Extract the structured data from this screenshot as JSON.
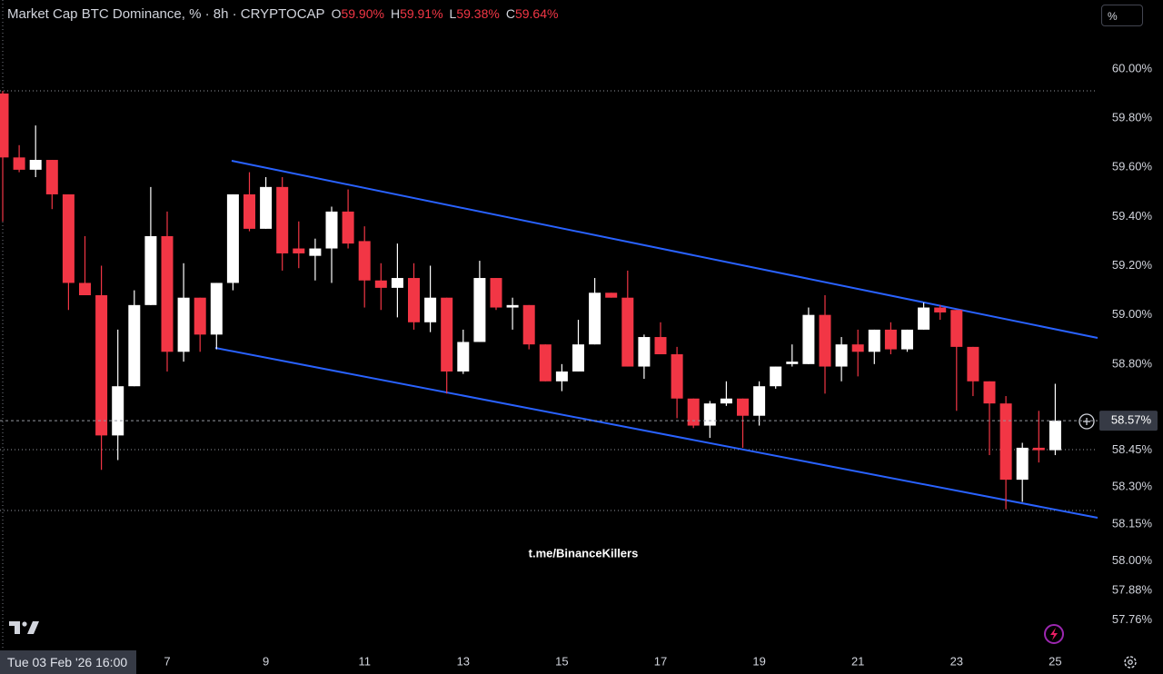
{
  "chart_data": {
    "type": "candlestick",
    "title": "Market Cap BTC Dominance, % · 8h · CRYPTOCAP",
    "ohlc_keys": [
      "O",
      "H",
      "L",
      "C"
    ],
    "ohlc_labels": [
      "59.90%",
      "59.91%",
      "59.38%",
      "59.64%"
    ],
    "crosshair_time": "Tue 03 Feb '26 16:00",
    "watermark": "t.me/BinanceKillers",
    "scale_button": "%",
    "last_price_label": "58.57%",
    "up_color": "#ffffff",
    "down_color": "#f23645",
    "categories": [
      null,
      null,
      null,
      null,
      null,
      null,
      null,
      null,
      null,
      null,
      "7",
      null,
      null,
      null,
      null,
      null,
      "9",
      null,
      null,
      null,
      null,
      null,
      "11",
      null,
      null,
      null,
      null,
      null,
      "13",
      null,
      null,
      null,
      null,
      null,
      "15",
      null,
      null,
      null,
      null,
      null,
      "17",
      null,
      null,
      null,
      null,
      null,
      "19",
      null,
      null,
      null,
      null,
      null,
      "21",
      null,
      null,
      null,
      null,
      null,
      "23",
      null,
      null,
      null,
      null,
      null,
      "25"
    ],
    "open": [
      59.9,
      59.64,
      59.59,
      59.63,
      59.49,
      59.13,
      59.08,
      58.51,
      58.71,
      59.04,
      59.32,
      58.85,
      59.07,
      58.92,
      59.13,
      59.49,
      59.35,
      59.52,
      59.27,
      59.24,
      59.27,
      59.42,
      59.3,
      59.14,
      59.11,
      59.15,
      58.97,
      59.07,
      58.77,
      58.89,
      59.15,
      59.03,
      59.04,
      58.88,
      58.73,
      58.77,
      58.88,
      59.09,
      59.07,
      58.79,
      58.91,
      58.84,
      58.66,
      58.55,
      58.64,
      58.66,
      58.59,
      58.71,
      58.8,
      58.8,
      59.0,
      58.79,
      58.88,
      58.85,
      58.94,
      58.86,
      58.94,
      59.03,
      59.02,
      58.87,
      58.73,
      58.64,
      58.33,
      58.46,
      58.45
    ],
    "high": [
      59.91,
      59.69,
      59.77,
      59.63,
      59.49,
      59.32,
      59.2,
      58.94,
      59.1,
      59.52,
      59.42,
      59.21,
      59.07,
      59.13,
      59.49,
      59.58,
      59.56,
      59.56,
      59.38,
      59.31,
      59.44,
      59.51,
      59.36,
      59.21,
      59.29,
      59.21,
      59.2,
      59.07,
      58.94,
      59.22,
      59.15,
      59.07,
      59.04,
      58.88,
      58.8,
      58.98,
      59.15,
      59.09,
      59.18,
      58.92,
      58.97,
      58.87,
      58.66,
      58.65,
      58.73,
      58.66,
      58.73,
      58.79,
      58.88,
      59.03,
      59.08,
      58.91,
      58.94,
      58.94,
      58.97,
      58.94,
      59.05,
      59.04,
      59.02,
      58.87,
      58.73,
      58.67,
      58.48,
      58.61,
      58.72
    ],
    "low": [
      59.38,
      59.58,
      59.56,
      59.43,
      59.02,
      59.08,
      58.37,
      58.41,
      58.71,
      59.04,
      58.77,
      58.81,
      58.85,
      58.86,
      59.1,
      59.34,
      59.35,
      59.18,
      59.19,
      59.14,
      59.13,
      59.27,
      59.03,
      59.02,
      58.99,
      58.94,
      58.93,
      58.68,
      58.76,
      58.89,
      59.02,
      58.94,
      58.86,
      58.73,
      58.69,
      58.77,
      58.88,
      59.07,
      58.79,
      58.74,
      58.84,
      58.58,
      58.54,
      58.5,
      58.63,
      58.46,
      58.55,
      58.7,
      58.79,
      58.8,
      58.68,
      58.73,
      58.75,
      58.8,
      58.84,
      58.85,
      58.94,
      58.98,
      58.61,
      58.67,
      58.43,
      58.21,
      58.24,
      58.4,
      58.43
    ],
    "close": [
      59.64,
      59.59,
      59.63,
      59.49,
      59.13,
      59.08,
      58.51,
      58.71,
      59.04,
      59.32,
      58.85,
      59.07,
      58.92,
      59.13,
      59.49,
      59.35,
      59.52,
      59.25,
      59.25,
      59.27,
      59.42,
      59.29,
      59.14,
      59.11,
      59.15,
      58.97,
      59.07,
      58.77,
      58.89,
      59.15,
      59.03,
      59.04,
      58.88,
      58.73,
      58.77,
      58.88,
      59.09,
      59.07,
      58.79,
      58.91,
      58.84,
      58.66,
      58.55,
      58.64,
      58.66,
      58.59,
      58.71,
      58.79,
      58.81,
      59.0,
      58.79,
      58.88,
      58.85,
      58.94,
      58.86,
      58.94,
      59.03,
      59.01,
      58.87,
      58.73,
      58.64,
      58.33,
      58.46,
      58.45,
      58.57
    ],
    "ylim": [
      57.64,
      60.28
    ],
    "yticks": [
      {
        "value": 60.0,
        "label": "60.00%"
      },
      {
        "value": 59.8,
        "label": "59.80%"
      },
      {
        "value": 59.6,
        "label": "59.60%"
      },
      {
        "value": 59.4,
        "label": "59.40%"
      },
      {
        "value": 59.2,
        "label": "59.20%"
      },
      {
        "value": 59.0,
        "label": "59.00%"
      },
      {
        "value": 58.8,
        "label": "58.80%"
      },
      {
        "value": 58.45,
        "label": "58.45%"
      },
      {
        "value": 58.3,
        "label": "58.30%"
      },
      {
        "value": 58.15,
        "label": "58.15%"
      },
      {
        "value": 58.0,
        "label": "58.00%"
      },
      {
        "value": 57.88,
        "label": "57.88%"
      },
      {
        "value": 57.76,
        "label": "57.76%"
      }
    ],
    "grid": false
  }
}
